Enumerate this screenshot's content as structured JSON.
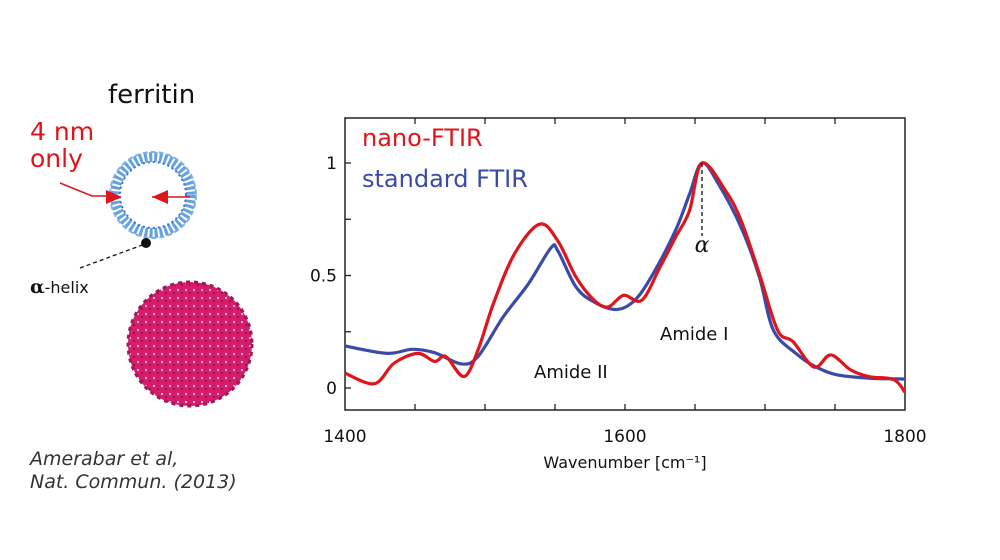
{
  "figure": {
    "molecule_title": "ferritin",
    "annotation": [
      "4 nm",
      "only"
    ],
    "helix_label_symbol": "α",
    "helix_label_text": "-helix",
    "citation": [
      "Amerabar et al,",
      "Nat. Commun. (2013)"
    ],
    "colors": {
      "nano_ftir": "#e0141b",
      "standard_ftir": "#3a4aa8",
      "ring_structure": "#4a90d9",
      "sphere_structure": "#d81b6a"
    }
  },
  "chart_data": {
    "type": "line",
    "title": "",
    "xlabel": "Wavenumber [cm⁻¹]",
    "ylabel": "",
    "xlim": [
      1400,
      1800
    ],
    "ylim": [
      -0.1,
      1.2
    ],
    "xticks": [
      1400,
      1600,
      1800
    ],
    "yticks": [
      0,
      0.5,
      1
    ],
    "ytick_labels": [
      "0",
      "0.5",
      "1"
    ],
    "xtick_labels": [
      "1400",
      "1600",
      "1800"
    ],
    "grid": false,
    "legend": "top-left",
    "annotations": [
      {
        "text": "Amide II",
        "x": 1590,
        "y": 0.08
      },
      {
        "text": "Amide I",
        "x": 1660,
        "y": 0.23
      },
      {
        "text": "α",
        "x": 1655,
        "y": 0.62
      }
    ],
    "series": [
      {
        "name": "nano-FTIR",
        "color": "#e0141b",
        "x": [
          1400,
          1421,
          1435,
          1452,
          1464,
          1472,
          1485,
          1495,
          1506,
          1521,
          1539,
          1552,
          1565,
          1578,
          1588,
          1599,
          1612,
          1625,
          1636,
          1646,
          1655,
          1672,
          1683,
          1696,
          1709,
          1720,
          1735,
          1747,
          1761,
          1774,
          1792,
          1800
        ],
        "y": [
          0.066,
          0.019,
          0.11,
          0.154,
          0.118,
          0.14,
          0.051,
          0.169,
          0.375,
          0.596,
          0.728,
          0.654,
          0.493,
          0.39,
          0.36,
          0.412,
          0.39,
          0.537,
          0.669,
          0.787,
          1.0,
          0.875,
          0.743,
          0.507,
          0.257,
          0.206,
          0.093,
          0.147,
          0.081,
          0.051,
          0.037,
          -0.019
        ]
      },
      {
        "name": "standard FTIR",
        "color": "#3a4aa8",
        "x": [
          1400,
          1430,
          1448,
          1464,
          1483,
          1495,
          1513,
          1531,
          1547,
          1552,
          1565,
          1578,
          1594,
          1607,
          1620,
          1636,
          1646,
          1655,
          1667,
          1683,
          1696,
          1706,
          1722,
          1735,
          1751,
          1774,
          1800
        ],
        "y": [
          0.187,
          0.154,
          0.172,
          0.157,
          0.107,
          0.14,
          0.316,
          0.463,
          0.622,
          0.61,
          0.449,
          0.382,
          0.349,
          0.39,
          0.507,
          0.699,
          0.86,
          1.0,
          0.904,
          0.713,
          0.493,
          0.257,
          0.154,
          0.098,
          0.059,
          0.044,
          0.04
        ]
      }
    ]
  }
}
